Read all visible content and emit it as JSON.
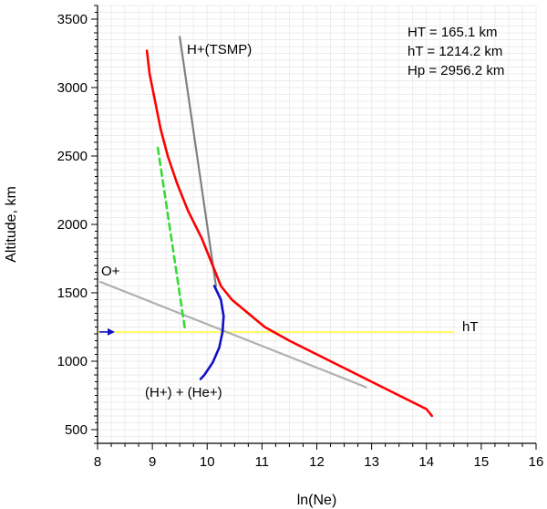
{
  "chart_data": {
    "type": "line",
    "xlabel": "ln(Ne)",
    "ylabel": "Altitude, km",
    "xlim": [
      8,
      16
    ],
    "ylim": [
      400,
      3600
    ],
    "x_ticks": [
      8,
      9,
      10,
      11,
      12,
      13,
      14,
      15,
      16
    ],
    "y_ticks": [
      500,
      1000,
      1500,
      2000,
      2500,
      3000,
      3500
    ],
    "grid": true,
    "info_lines": [
      "HT = 165.1 km",
      "hT = 1214.2 km",
      "Hp = 2956.2 km"
    ],
    "colors": {
      "ne_profile": "#ff0000",
      "h_tsmp": "#808080",
      "o_plus": "#b0b0b0",
      "h_he": "#1010c8",
      "dashed": "#33dd33",
      "hT_line": "#ffff44",
      "arrow": "#1010c8"
    },
    "series": [
      {
        "key": "ne_profile",
        "points": [
          [
            8.9,
            3270
          ],
          [
            8.95,
            3100
          ],
          [
            9.05,
            2900
          ],
          [
            9.15,
            2700
          ],
          [
            9.28,
            2500
          ],
          [
            9.45,
            2300
          ],
          [
            9.65,
            2100
          ],
          [
            9.9,
            1900
          ],
          [
            10.1,
            1700
          ],
          [
            10.25,
            1550
          ],
          [
            10.45,
            1450
          ],
          [
            10.75,
            1350
          ],
          [
            11.05,
            1250
          ],
          [
            11.5,
            1150
          ],
          [
            12.0,
            1050
          ],
          [
            12.5,
            950
          ],
          [
            13.0,
            850
          ],
          [
            13.5,
            750
          ],
          [
            14.0,
            650
          ],
          [
            14.1,
            600
          ]
        ]
      },
      {
        "key": "h_tsmp",
        "label": "H+(TSMP)",
        "points": [
          [
            9.5,
            3370
          ],
          [
            10.16,
            1550
          ]
        ]
      },
      {
        "key": "o_plus",
        "label": "O+",
        "points": [
          [
            8.05,
            1580
          ],
          [
            12.9,
            810
          ]
        ]
      },
      {
        "key": "h_he",
        "label": "(H+) + (He+)",
        "points": [
          [
            10.13,
            1550
          ],
          [
            10.25,
            1450
          ],
          [
            10.3,
            1330
          ],
          [
            10.28,
            1214
          ],
          [
            10.22,
            1100
          ],
          [
            10.1,
            990
          ],
          [
            9.95,
            900
          ],
          [
            9.88,
            870
          ]
        ]
      },
      {
        "key": "dashed",
        "points": [
          [
            9.1,
            2560
          ],
          [
            9.6,
            1220
          ]
        ]
      },
      {
        "key": "hT_line",
        "label": "hT",
        "points": [
          [
            8.0,
            1214
          ],
          [
            14.5,
            1214
          ]
        ]
      }
    ]
  }
}
